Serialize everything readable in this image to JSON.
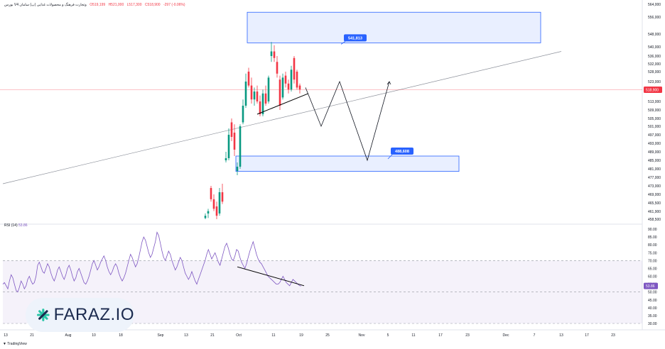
{
  "header": {
    "symbol": "بورس V4 وتجارت فرهنگ و محصولات غذایی (پ) سامان",
    "open": "O519,199",
    "high": "H521,000",
    "low": "L517,300",
    "close": "C518,900",
    "change": "-297 (-0.06%)"
  },
  "rsi_label": {
    "name": "RSI",
    "params": "(14)",
    "value": "53.86"
  },
  "brand": {
    "name": "FARAZ.IO",
    "platform": "TradingView"
  },
  "colors": {
    "up": "#089981",
    "down": "#f23645",
    "box": "#2962ff",
    "rsi": "#7e57c2",
    "label_bg": "#2962ff"
  },
  "chart_data": [
    {
      "type": "candlestick",
      "price_axis_ticks": [
        "564,000",
        "556,000",
        "548,000",
        "540,000",
        "536,000",
        "532,000",
        "528,000",
        "523,000",
        "513,000",
        "509,000",
        "505,000",
        "501,000",
        "497,000",
        "493,000",
        "489,000",
        "485,000",
        "481,000",
        "477,000",
        "473,000",
        "469,000",
        "465,500",
        "461,900",
        "458,500"
      ],
      "time_axis_ticks": [
        "13",
        "21",
        "Aug",
        "10",
        "18",
        "Sep",
        "13",
        "21",
        "Oct",
        "11",
        "19",
        "25",
        "Nov",
        "5",
        "11",
        "17",
        "23",
        "Dec",
        "7",
        "13",
        "17",
        "23"
      ],
      "current_price": "518,900",
      "zones": [
        {
          "label": "541,813",
          "top": 559000,
          "bottom": 542500
        },
        {
          "label": "488,608",
          "top": 487000,
          "bottom": 479800
        }
      ],
      "candles": [
        {
          "i": 289,
          "o": 459,
          "h": 461,
          "l": 457,
          "c": 460
        },
        {
          "i": 293,
          "o": 461,
          "h": 463,
          "l": 459,
          "c": 462
        },
        {
          "i": 297,
          "o": 472,
          "h": 473,
          "l": 466,
          "c": 467
        },
        {
          "i": 301,
          "o": 467,
          "h": 469,
          "l": 462,
          "c": 463
        },
        {
          "i": 305,
          "o": 464,
          "h": 466,
          "l": 458,
          "c": 460
        },
        {
          "i": 309,
          "o": 461,
          "h": 472,
          "l": 460,
          "c": 470
        },
        {
          "i": 313,
          "o": 470,
          "h": 474,
          "l": 465,
          "c": 466
        },
        {
          "i": 318,
          "o": 485,
          "h": 489,
          "l": 484,
          "c": 486
        },
        {
          "i": 322,
          "o": 486,
          "h": 500,
          "l": 485,
          "c": 497
        },
        {
          "i": 326,
          "o": 503,
          "h": 505,
          "l": 494,
          "c": 496
        },
        {
          "i": 330,
          "o": 498,
          "h": 502,
          "l": 487,
          "c": 490
        },
        {
          "i": 334,
          "o": 480,
          "h": 484,
          "l": 478,
          "c": 482
        },
        {
          "i": 338,
          "o": 482,
          "h": 502,
          "l": 481,
          "c": 501
        },
        {
          "i": 342,
          "o": 503,
          "h": 514,
          "l": 502,
          "c": 511
        },
        {
          "i": 346,
          "o": 511,
          "h": 527,
          "l": 510,
          "c": 523
        },
        {
          "i": 350,
          "o": 528,
          "h": 530,
          "l": 520,
          "c": 521
        },
        {
          "i": 354,
          "o": 521,
          "h": 525,
          "l": 512,
          "c": 514
        },
        {
          "i": 358,
          "o": 514,
          "h": 520,
          "l": 511,
          "c": 518
        },
        {
          "i": 362,
          "o": 518,
          "h": 521,
          "l": 512,
          "c": 513
        },
        {
          "i": 366,
          "o": 513,
          "h": 516,
          "l": 506,
          "c": 507
        },
        {
          "i": 370,
          "o": 507,
          "h": 519,
          "l": 506,
          "c": 517
        },
        {
          "i": 374,
          "o": 517,
          "h": 521,
          "l": 511,
          "c": 512
        },
        {
          "i": 378,
          "o": 513,
          "h": 526,
          "l": 512,
          "c": 525
        },
        {
          "i": 382,
          "o": 536,
          "h": 543,
          "l": 533,
          "c": 538
        },
        {
          "i": 386,
          "o": 538,
          "h": 541,
          "l": 533,
          "c": 535
        },
        {
          "i": 390,
          "o": 533,
          "h": 536,
          "l": 525,
          "c": 527
        },
        {
          "i": 394,
          "o": 524,
          "h": 526,
          "l": 509,
          "c": 511
        },
        {
          "i": 398,
          "o": 515,
          "h": 527,
          "l": 514,
          "c": 525
        },
        {
          "i": 402,
          "o": 526,
          "h": 528,
          "l": 520,
          "c": 522
        },
        {
          "i": 406,
          "o": 522,
          "h": 524,
          "l": 517,
          "c": 519
        },
        {
          "i": 410,
          "o": 519,
          "h": 531,
          "l": 518,
          "c": 529
        },
        {
          "i": 414,
          "o": 535,
          "h": 536,
          "l": 522,
          "c": 524
        },
        {
          "i": 418,
          "o": 528,
          "h": 529,
          "l": 519,
          "c": 520
        },
        {
          "i": 422,
          "o": 521,
          "h": 522,
          "l": 517,
          "c": 519
        }
      ],
      "projection_path": [
        [
          430,
          520
        ],
        [
          452,
          501
        ],
        [
          478,
          523
        ],
        [
          517,
          485
        ],
        [
          548,
          523
        ]
      ]
    },
    {
      "type": "line",
      "name": "RSI",
      "ylim": [
        30,
        90
      ],
      "axis_ticks": [
        "90.00",
        "85.00",
        "80.00",
        "75.00",
        "70.00",
        "65.00",
        "60.00",
        "55.00",
        "50.00",
        "45.00",
        "40.00",
        "35.00",
        "30.00"
      ],
      "bands": {
        "upper": 70,
        "middle": 50,
        "lower": 30
      },
      "current_value": "53.86",
      "values": [
        55,
        56,
        54,
        52,
        57,
        61,
        59,
        55,
        51,
        50,
        53,
        57,
        55,
        52,
        54,
        58,
        60,
        57,
        55,
        56,
        60,
        67,
        69,
        66,
        63,
        62,
        65,
        68,
        66,
        62,
        59,
        57,
        60,
        64,
        66,
        63,
        60,
        58,
        61,
        65,
        67,
        64,
        60,
        57,
        59,
        63,
        65,
        62,
        59,
        56,
        55,
        57,
        60,
        64,
        68,
        70,
        67,
        64,
        66,
        69,
        71,
        73,
        70,
        66,
        63,
        61,
        63,
        66,
        68,
        66,
        62,
        59,
        57,
        59,
        62,
        66,
        70,
        74,
        72,
        69,
        66,
        68,
        72,
        77,
        82,
        85,
        83,
        79,
        75,
        72,
        74,
        78,
        82,
        88,
        86,
        81,
        76,
        72,
        70,
        73,
        76,
        74,
        70,
        67,
        64,
        66,
        69,
        72,
        70,
        66,
        62,
        60,
        58,
        60,
        63,
        60,
        57,
        55,
        58,
        61,
        64,
        67,
        70,
        74,
        77,
        74,
        71,
        73,
        75,
        72,
        69,
        67,
        71,
        75,
        79,
        81,
        78,
        74,
        71,
        70,
        73,
        77,
        76,
        72,
        69,
        67,
        65,
        68,
        72,
        76,
        79,
        82,
        78,
        74,
        71,
        69,
        68,
        66,
        64,
        62,
        60,
        59,
        58,
        57,
        56,
        55,
        55,
        56,
        58,
        60,
        58,
        56,
        55,
        54,
        56,
        58,
        57,
        56,
        55,
        54,
        53.86
      ]
    }
  ]
}
